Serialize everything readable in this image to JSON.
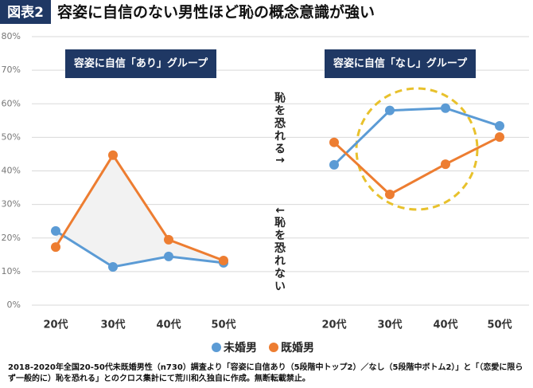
{
  "chart_data": {
    "type": "line",
    "badge": "図表2",
    "title": "容姿に自信のない男性ほど恥の概念意識が強い",
    "ylim": [
      0,
      80
    ],
    "yticks": [
      {
        "value": 0,
        "label": "0%"
      },
      {
        "value": 10,
        "label": "10%"
      },
      {
        "value": 20,
        "label": "20%"
      },
      {
        "value": 30,
        "label": "30%"
      },
      {
        "value": 40,
        "label": "40%"
      },
      {
        "value": 50,
        "label": "50%"
      },
      {
        "value": 60,
        "label": "60%"
      },
      {
        "value": 70,
        "label": "70%"
      },
      {
        "value": 80,
        "label": "80%"
      }
    ],
    "grid": true,
    "legend": "bottom",
    "panels": [
      {
        "title": "容姿に自信「あり」グループ",
        "categories": [
          "20代",
          "30代",
          "40代",
          "50代"
        ]
      },
      {
        "title": "容姿に自信「なし」グループ",
        "categories": [
          "20代",
          "30代",
          "40代",
          "50代"
        ]
      }
    ],
    "series": [
      {
        "name": "未婚男",
        "color": "#5b9bd5",
        "values": [
          [
            22.1,
            11.4,
            14.5,
            12.6
          ],
          [
            41.8,
            58,
            58.7,
            53.4
          ]
        ]
      },
      {
        "name": "既婚男",
        "color": "#ed7d31",
        "values": [
          [
            17.3,
            44.7,
            19.5,
            13.3
          ],
          [
            48.5,
            33,
            42,
            50.1
          ]
        ]
      }
    ],
    "annotations": [
      "恥を恐れる↑",
      "↓恥を恐れない"
    ],
    "source": "2018-2020年全国20-50代未既婚男性（n730）調査より「容姿に自信あり（5段階中トップ2）／なし（5段階中ボトム2）」と「（恋愛に限らず一般的に）恥を恐れる」とのクロス集計にて荒川和久独自に作成。無断転載禁止。"
  }
}
